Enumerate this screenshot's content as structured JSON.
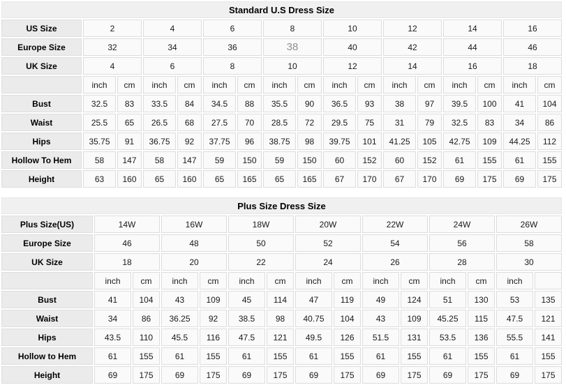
{
  "page": {
    "background_color": "#ffffff",
    "accent_label_bg": "#ebebeb",
    "cell_bg": "#fafafa",
    "title_bg": "#f0f0f0",
    "border_color": "#dcdcdc",
    "muted_text_color": "#8f8f8f"
  },
  "tables": [
    {
      "title": "Standard U.S Dress Size",
      "size_rows": [
        {
          "label": "US Size",
          "values": [
            "2",
            "4",
            "6",
            "8",
            "10",
            "12",
            "14",
            "16"
          ]
        },
        {
          "label": "Europe Size",
          "values": [
            "32",
            "34",
            "36",
            "38",
            "40",
            "42",
            "44",
            "46"
          ],
          "muted_index": 3
        },
        {
          "label": "UK Size",
          "values": [
            "4",
            "6",
            "8",
            "10",
            "12",
            "14",
            "16",
            "18"
          ]
        }
      ],
      "unit_row": {
        "label": "",
        "units": [
          "inch",
          "cm",
          "inch",
          "cm",
          "inch",
          "cm",
          "inch",
          "cm",
          "inch",
          "cm",
          "inch",
          "cm",
          "inch",
          "cm",
          "inch",
          "cm"
        ]
      },
      "measurement_rows": [
        {
          "label": "Bust",
          "values": [
            "32.5",
            "83",
            "33.5",
            "84",
            "34.5",
            "88",
            "35.5",
            "90",
            "36.5",
            "93",
            "38",
            "97",
            "39.5",
            "100",
            "41",
            "104"
          ]
        },
        {
          "label": "Waist",
          "values": [
            "25.5",
            "65",
            "26.5",
            "68",
            "27.5",
            "70",
            "28.5",
            "72",
            "29.5",
            "75",
            "31",
            "79",
            "32.5",
            "83",
            "34",
            "86"
          ]
        },
        {
          "label": "Hips",
          "values": [
            "35.75",
            "91",
            "36.75",
            "92",
            "37.75",
            "96",
            "38.75",
            "98",
            "39.75",
            "101",
            "41.25",
            "105",
            "42.75",
            "109",
            "44.25",
            "112"
          ]
        },
        {
          "label": "Hollow To Hem",
          "values": [
            "58",
            "147",
            "58",
            "147",
            "59",
            "150",
            "59",
            "150",
            "60",
            "152",
            "60",
            "152",
            "61",
            "155",
            "61",
            "155"
          ]
        },
        {
          "label": "Height",
          "values": [
            "63",
            "160",
            "65",
            "160",
            "65",
            "165",
            "65",
            "165",
            "67",
            "170",
            "67",
            "170",
            "69",
            "175",
            "69",
            "175"
          ]
        }
      ]
    },
    {
      "title": "Plus Size Dress Size",
      "size_rows": [
        {
          "label": "Plus Size(US)",
          "values": [
            "14W",
            "16W",
            "18W",
            "20W",
            "22W",
            "24W",
            "26W"
          ]
        },
        {
          "label": "Europe Size",
          "values": [
            "46",
            "48",
            "50",
            "52",
            "54",
            "56",
            "58"
          ]
        },
        {
          "label": "UK Size",
          "values": [
            "18",
            "20",
            "22",
            "24",
            "26",
            "28",
            "30"
          ]
        }
      ],
      "unit_row": {
        "label": "",
        "units": [
          "inch",
          "cm",
          "inch",
          "cm",
          "inch",
          "cm",
          "inch",
          "cm",
          "inch",
          "cm",
          "inch",
          "cm",
          "inch",
          ""
        ]
      },
      "measurement_rows": [
        {
          "label": "Bust",
          "values": [
            "41",
            "104",
            "43",
            "109",
            "45",
            "114",
            "47",
            "119",
            "49",
            "124",
            "51",
            "130",
            "53",
            "135"
          ]
        },
        {
          "label": "Waist",
          "values": [
            "34",
            "86",
            "36.25",
            "92",
            "38.5",
            "98",
            "40.75",
            "104",
            "43",
            "109",
            "45.25",
            "115",
            "47.5",
            "121"
          ]
        },
        {
          "label": "Hips",
          "values": [
            "43.5",
            "110",
            "45.5",
            "116",
            "47.5",
            "121",
            "49.5",
            "126",
            "51.5",
            "131",
            "53.5",
            "136",
            "55.5",
            "141"
          ]
        },
        {
          "label": "Hollow to Hem",
          "values": [
            "61",
            "155",
            "61",
            "155",
            "61",
            "155",
            "61",
            "155",
            "61",
            "155",
            "61",
            "155",
            "61",
            "155"
          ]
        },
        {
          "label": "Height",
          "values": [
            "69",
            "175",
            "69",
            "175",
            "69",
            "175",
            "69",
            "175",
            "69",
            "175",
            "69",
            "175",
            "69",
            "175"
          ]
        }
      ]
    }
  ]
}
